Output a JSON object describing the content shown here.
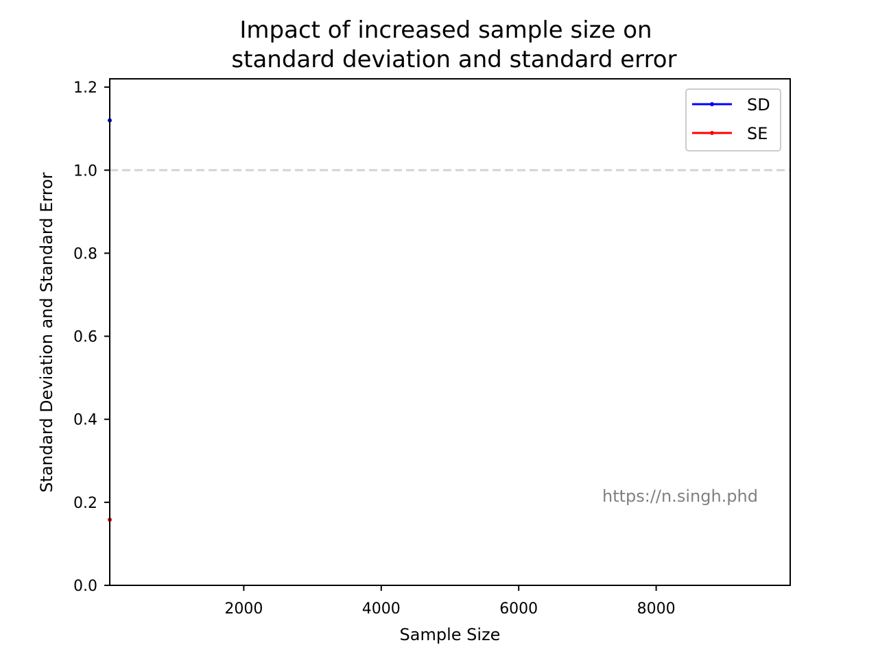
{
  "chart_data": {
    "type": "line",
    "title_line1": "Impact of increased sample size on",
    "title_line2": "standard deviation and standard error",
    "xlabel": "Sample Size",
    "ylabel": "Standard Deviation and Standard Error",
    "xlim": [
      50,
      9950
    ],
    "ylim": [
      0,
      1.22
    ],
    "x_ticks": [
      2000,
      4000,
      6000,
      8000
    ],
    "y_ticks": [
      0.0,
      0.2,
      0.4,
      0.6,
      0.8,
      1.0,
      1.2
    ],
    "reference_line": {
      "y": 1.0,
      "style": "dashed",
      "color": "#d3d3d3"
    },
    "series": [
      {
        "name": "SD",
        "color": "#0000ff",
        "x": [
          50
        ],
        "y": [
          1.12
        ]
      },
      {
        "name": "SE",
        "color": "#ff0000",
        "x": [
          50
        ],
        "y": [
          0.158
        ]
      }
    ],
    "legend": "top-right",
    "grid": false,
    "annotation": "https://n.singh.phd"
  }
}
